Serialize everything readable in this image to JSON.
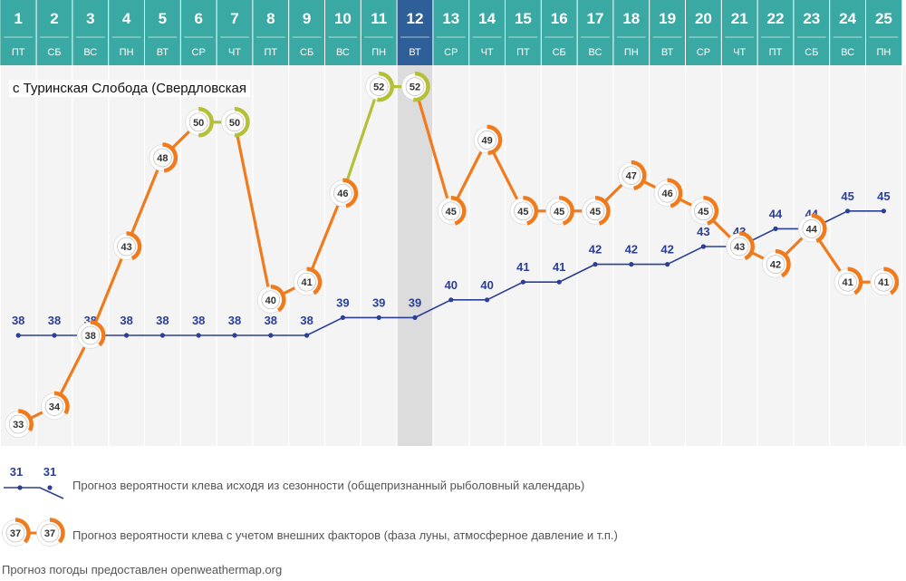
{
  "chart_data": {
    "type": "line",
    "location": "с Туринская Слобода (Свердловская",
    "days": [
      {
        "num": "1",
        "wd": "ПТ"
      },
      {
        "num": "2",
        "wd": "СБ"
      },
      {
        "num": "3",
        "wd": "ВС"
      },
      {
        "num": "4",
        "wd": "ПН"
      },
      {
        "num": "5",
        "wd": "ВТ"
      },
      {
        "num": "6",
        "wd": "СР"
      },
      {
        "num": "7",
        "wd": "ЧТ"
      },
      {
        "num": "8",
        "wd": "ПТ"
      },
      {
        "num": "9",
        "wd": "СБ"
      },
      {
        "num": "10",
        "wd": "ВС"
      },
      {
        "num": "11",
        "wd": "ПН"
      },
      {
        "num": "12",
        "wd": "ВТ"
      },
      {
        "num": "13",
        "wd": "СР"
      },
      {
        "num": "14",
        "wd": "ЧТ"
      },
      {
        "num": "15",
        "wd": "ПТ"
      },
      {
        "num": "16",
        "wd": "СБ"
      },
      {
        "num": "17",
        "wd": "ВС"
      },
      {
        "num": "18",
        "wd": "ПН"
      },
      {
        "num": "19",
        "wd": "ВТ"
      },
      {
        "num": "20",
        "wd": "СР"
      },
      {
        "num": "21",
        "wd": "ЧТ"
      },
      {
        "num": "22",
        "wd": "ПТ"
      },
      {
        "num": "23",
        "wd": "СБ"
      },
      {
        "num": "24",
        "wd": "ВС"
      },
      {
        "num": "25",
        "wd": "ПН"
      }
    ],
    "highlighted_day": "12",
    "series": [
      {
        "values": [
          38,
          38,
          38,
          38,
          38,
          38,
          38,
          38,
          38,
          39,
          39,
          39,
          40,
          40,
          41,
          41,
          42,
          42,
          42,
          43,
          43,
          44,
          44,
          45,
          45
        ]
      },
      {
        "values": [
          33,
          34,
          38,
          43,
          48,
          50,
          50,
          40,
          41,
          46,
          52,
          52,
          45,
          49,
          45,
          45,
          45,
          47,
          46,
          45,
          43,
          42,
          44,
          41,
          41
        ]
      }
    ],
    "ylim": [
      32,
      54
    ]
  },
  "colors": {
    "header": "#3aa8a3",
    "header_highlight": "#2e5f99",
    "plot_bg": "#f4f4f4",
    "highlight_band": "#dcdcdc",
    "seasonal": "#2b3f97",
    "factors": "#f07b1d",
    "peak": "#b5c039"
  },
  "legend": {
    "seasonal_values": [
      "31",
      "31"
    ],
    "seasonal_text": "Прогноз вероятности клева исходя из сезонности (общепризнанный рыболовный календарь)",
    "factors_values": [
      "37",
      "37"
    ],
    "factors_text": "Прогноз вероятности клева с учетом внешних факторов (фаза луны, атмосферное давление и т.п.)"
  },
  "source": "Прогноз погоды предоставлен openweathermap.org"
}
